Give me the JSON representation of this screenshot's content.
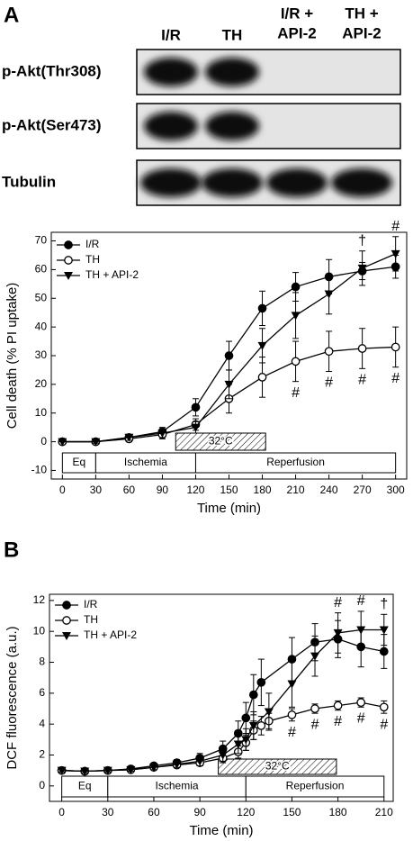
{
  "panel_labels": [
    "A",
    "B"
  ],
  "blot": {
    "columns": [
      [
        "I/R"
      ],
      [
        "TH"
      ],
      [
        "I/R +",
        "API-2"
      ],
      [
        "TH +",
        "API-2"
      ]
    ],
    "rows": [
      "p-Akt(Thr308)",
      "p-Akt(Ser473)",
      "Tubulin"
    ]
  },
  "chart_data": [
    {
      "type": "line",
      "y_label": "Cell death (% PI uptake)",
      "x_label": "Time (min)",
      "xlim": [
        -10,
        310
      ],
      "ylim": [
        -13,
        73
      ],
      "xticks": [
        0,
        30,
        60,
        90,
        120,
        150,
        180,
        210,
        240,
        270,
        300
      ],
      "yticks": [
        -10,
        0,
        10,
        20,
        30,
        40,
        50,
        60,
        70
      ],
      "legend": "upper left",
      "series": [
        {
          "name": "I/R",
          "color": "#000000",
          "marker": "circle",
          "x": [
            0,
            30,
            60,
            90,
            120,
            150,
            180,
            210,
            240,
            270,
            300
          ],
          "values": [
            0,
            0,
            1.5,
            3.5,
            12,
            30,
            46.5,
            54,
            57.5,
            59.5,
            61
          ],
          "errors": [
            0,
            0.5,
            1,
            1.5,
            3,
            5,
            6,
            5,
            6,
            3,
            4
          ]
        },
        {
          "name": "TH",
          "color": "#000000",
          "marker": "open-circle",
          "x": [
            0,
            30,
            60,
            90,
            120,
            150,
            180,
            210,
            240,
            270,
            300
          ],
          "values": [
            0,
            0,
            1,
            2.5,
            6,
            15,
            22.5,
            28,
            31.5,
            32.5,
            33
          ],
          "errors": [
            0,
            0.5,
            1,
            1.5,
            2,
            5,
            7,
            7,
            7,
            7,
            7
          ]
        },
        {
          "name": "TH + API-2",
          "color": "#000000",
          "marker": "triangle-down",
          "x": [
            0,
            30,
            60,
            90,
            120,
            150,
            180,
            210,
            240,
            270,
            300
          ],
          "values": [
            0,
            0,
            1.5,
            3,
            5,
            20,
            33.5,
            44,
            51.5,
            60.5,
            65.5
          ],
          "errors": [
            0,
            0.5,
            1,
            1.5,
            2,
            5,
            6,
            8,
            7,
            6,
            6
          ]
        }
      ],
      "annotations": [
        {
          "text": "#",
          "x": 210,
          "side": "below"
        },
        {
          "text": "#",
          "x": 240,
          "side": "below"
        },
        {
          "text": "#",
          "x": 270,
          "side": "below"
        },
        {
          "text": "#",
          "x": 300,
          "side": "below"
        },
        {
          "text": "†",
          "x": 270,
          "side": "above"
        },
        {
          "text": "#",
          "x": 300,
          "side": "above"
        }
      ],
      "hatch": {
        "label": "32°C",
        "start": 102,
        "end": 183
      },
      "phases": [
        {
          "label": "Eq",
          "start": 0,
          "end": 30
        },
        {
          "label": "Ischemia",
          "start": 30,
          "end": 120
        },
        {
          "label": "Reperfusion",
          "start": 120,
          "end": 300
        }
      ]
    },
    {
      "type": "line",
      "y_label": "DCF fluorescence (a.u.)",
      "x_label": "Time (min)",
      "xlim": [
        -8,
        216
      ],
      "ylim": [
        -1,
        12.4
      ],
      "xticks": [
        0,
        30,
        60,
        90,
        120,
        150,
        180,
        210
      ],
      "yticks": [
        0,
        2,
        4,
        6,
        8,
        10,
        12
      ],
      "legend": "upper left",
      "series": [
        {
          "name": "I/R",
          "color": "#000000",
          "marker": "circle",
          "x": [
            0,
            15,
            30,
            45,
            60,
            75,
            90,
            105,
            115,
            120,
            125,
            130,
            150,
            165,
            180,
            195,
            210
          ],
          "values": [
            1.0,
            0.95,
            1.0,
            1.1,
            1.3,
            1.5,
            1.8,
            2.4,
            3.4,
            4.4,
            5.9,
            6.7,
            8.2,
            9.3,
            9.5,
            9.0,
            8.7
          ],
          "errors": [
            0.1,
            0.1,
            0.1,
            0.1,
            0.15,
            0.2,
            0.3,
            0.5,
            0.8,
            1.0,
            1.3,
            1.5,
            1.4,
            1.2,
            1.2,
            1.3,
            1.1
          ]
        },
        {
          "name": "TH",
          "color": "#000000",
          "marker": "open-circle",
          "x": [
            0,
            15,
            30,
            45,
            60,
            75,
            90,
            105,
            115,
            120,
            125,
            130,
            135,
            150,
            165,
            180,
            195,
            210
          ],
          "values": [
            1.0,
            0.95,
            1.0,
            1.05,
            1.2,
            1.35,
            1.5,
            1.8,
            2.2,
            2.8,
            3.6,
            3.9,
            4.2,
            4.6,
            5.0,
            5.2,
            5.4,
            5.1
          ],
          "errors": [
            0.1,
            0.1,
            0.1,
            0.1,
            0.1,
            0.15,
            0.2,
            0.3,
            0.4,
            0.5,
            0.6,
            0.6,
            0.5,
            0.4,
            0.3,
            0.3,
            0.3,
            0.4
          ]
        },
        {
          "name": "TH + API-2",
          "color": "#000000",
          "marker": "triangle-down",
          "x": [
            0,
            15,
            30,
            45,
            60,
            75,
            90,
            105,
            115,
            120,
            125,
            135,
            150,
            165,
            180,
            195,
            210
          ],
          "values": [
            1.0,
            0.95,
            1.0,
            1.05,
            1.2,
            1.4,
            1.6,
            2.0,
            2.7,
            3.0,
            3.9,
            4.8,
            6.6,
            8.4,
            9.9,
            10.1,
            10.1
          ],
          "errors": [
            0.1,
            0.1,
            0.1,
            0.1,
            0.15,
            0.2,
            0.3,
            0.4,
            0.6,
            0.7,
            0.9,
            1.2,
            1.5,
            1.3,
            1.3,
            1.2,
            1.0
          ]
        }
      ],
      "annotations": [
        {
          "text": "#",
          "x": 150,
          "side": "below"
        },
        {
          "text": "#",
          "x": 165,
          "side": "below"
        },
        {
          "text": "#",
          "x": 180,
          "side": "below"
        },
        {
          "text": "#",
          "x": 195,
          "side": "below"
        },
        {
          "text": "#",
          "x": 210,
          "side": "below"
        },
        {
          "text": "#",
          "x": 180,
          "side": "above"
        },
        {
          "text": "#",
          "x": 195,
          "side": "above"
        },
        {
          "text": "†",
          "x": 210,
          "side": "above"
        }
      ],
      "hatch": {
        "label": "32°C",
        "start": 102,
        "end": 179
      },
      "phases": [
        {
          "label": "Eq",
          "start": 0,
          "end": 30
        },
        {
          "label": "Ischemia",
          "start": 30,
          "end": 120
        },
        {
          "label": "Reperfusion",
          "start": 120,
          "end": 210
        }
      ]
    }
  ]
}
